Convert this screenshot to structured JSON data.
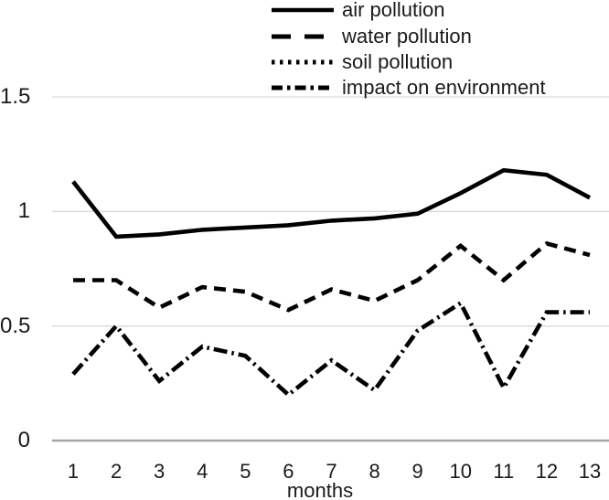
{
  "chart_data": {
    "type": "line",
    "title": "",
    "xlabel": "months",
    "ylabel": "",
    "x": [
      1,
      2,
      3,
      4,
      5,
      6,
      7,
      8,
      9,
      10,
      11,
      12,
      13
    ],
    "x_tick_labels": [
      "1",
      "2",
      "3",
      "4",
      "5",
      "6",
      "7",
      "8",
      "9",
      "10",
      "11",
      "12",
      "13"
    ],
    "ylim": [
      0,
      1.5
    ],
    "y_ticks": [
      0,
      0.5,
      1,
      1.5
    ],
    "y_tick_labels": [
      "0",
      "0.5",
      "1",
      "1.5"
    ],
    "grid": true,
    "legend_position": "top",
    "legend": [
      {
        "label": "air pollution",
        "style": "solid"
      },
      {
        "label": "water pollution",
        "style": "long-dash"
      },
      {
        "label": "soil pollution",
        "style": "dotted"
      },
      {
        "label": "impact on environment",
        "style": "dash-dot"
      }
    ],
    "series": [
      {
        "name": "air pollution",
        "style": "solid",
        "values": [
          1.13,
          0.89,
          0.9,
          0.92,
          0.93,
          0.94,
          0.96,
          0.97,
          0.99,
          1.08,
          1.18,
          1.16,
          1.06
        ]
      },
      {
        "name": "water pollution",
        "style": "long-dash",
        "values": [
          0.7,
          0.7,
          0.58,
          0.67,
          0.65,
          0.57,
          0.66,
          0.61,
          0.7,
          0.85,
          0.7,
          0.86,
          0.81
        ]
      },
      {
        "name": "impact on environment",
        "style": "dash-dot",
        "values": [
          0.29,
          0.5,
          0.26,
          0.41,
          0.37,
          0.2,
          0.35,
          0.22,
          0.48,
          0.6,
          0.23,
          0.56,
          0.56
        ]
      }
    ],
    "colors": {
      "line": "#000000",
      "gridline": "#d9d9d9",
      "axis_line": "#a6a6a6",
      "text": "#1a1a1a"
    }
  }
}
